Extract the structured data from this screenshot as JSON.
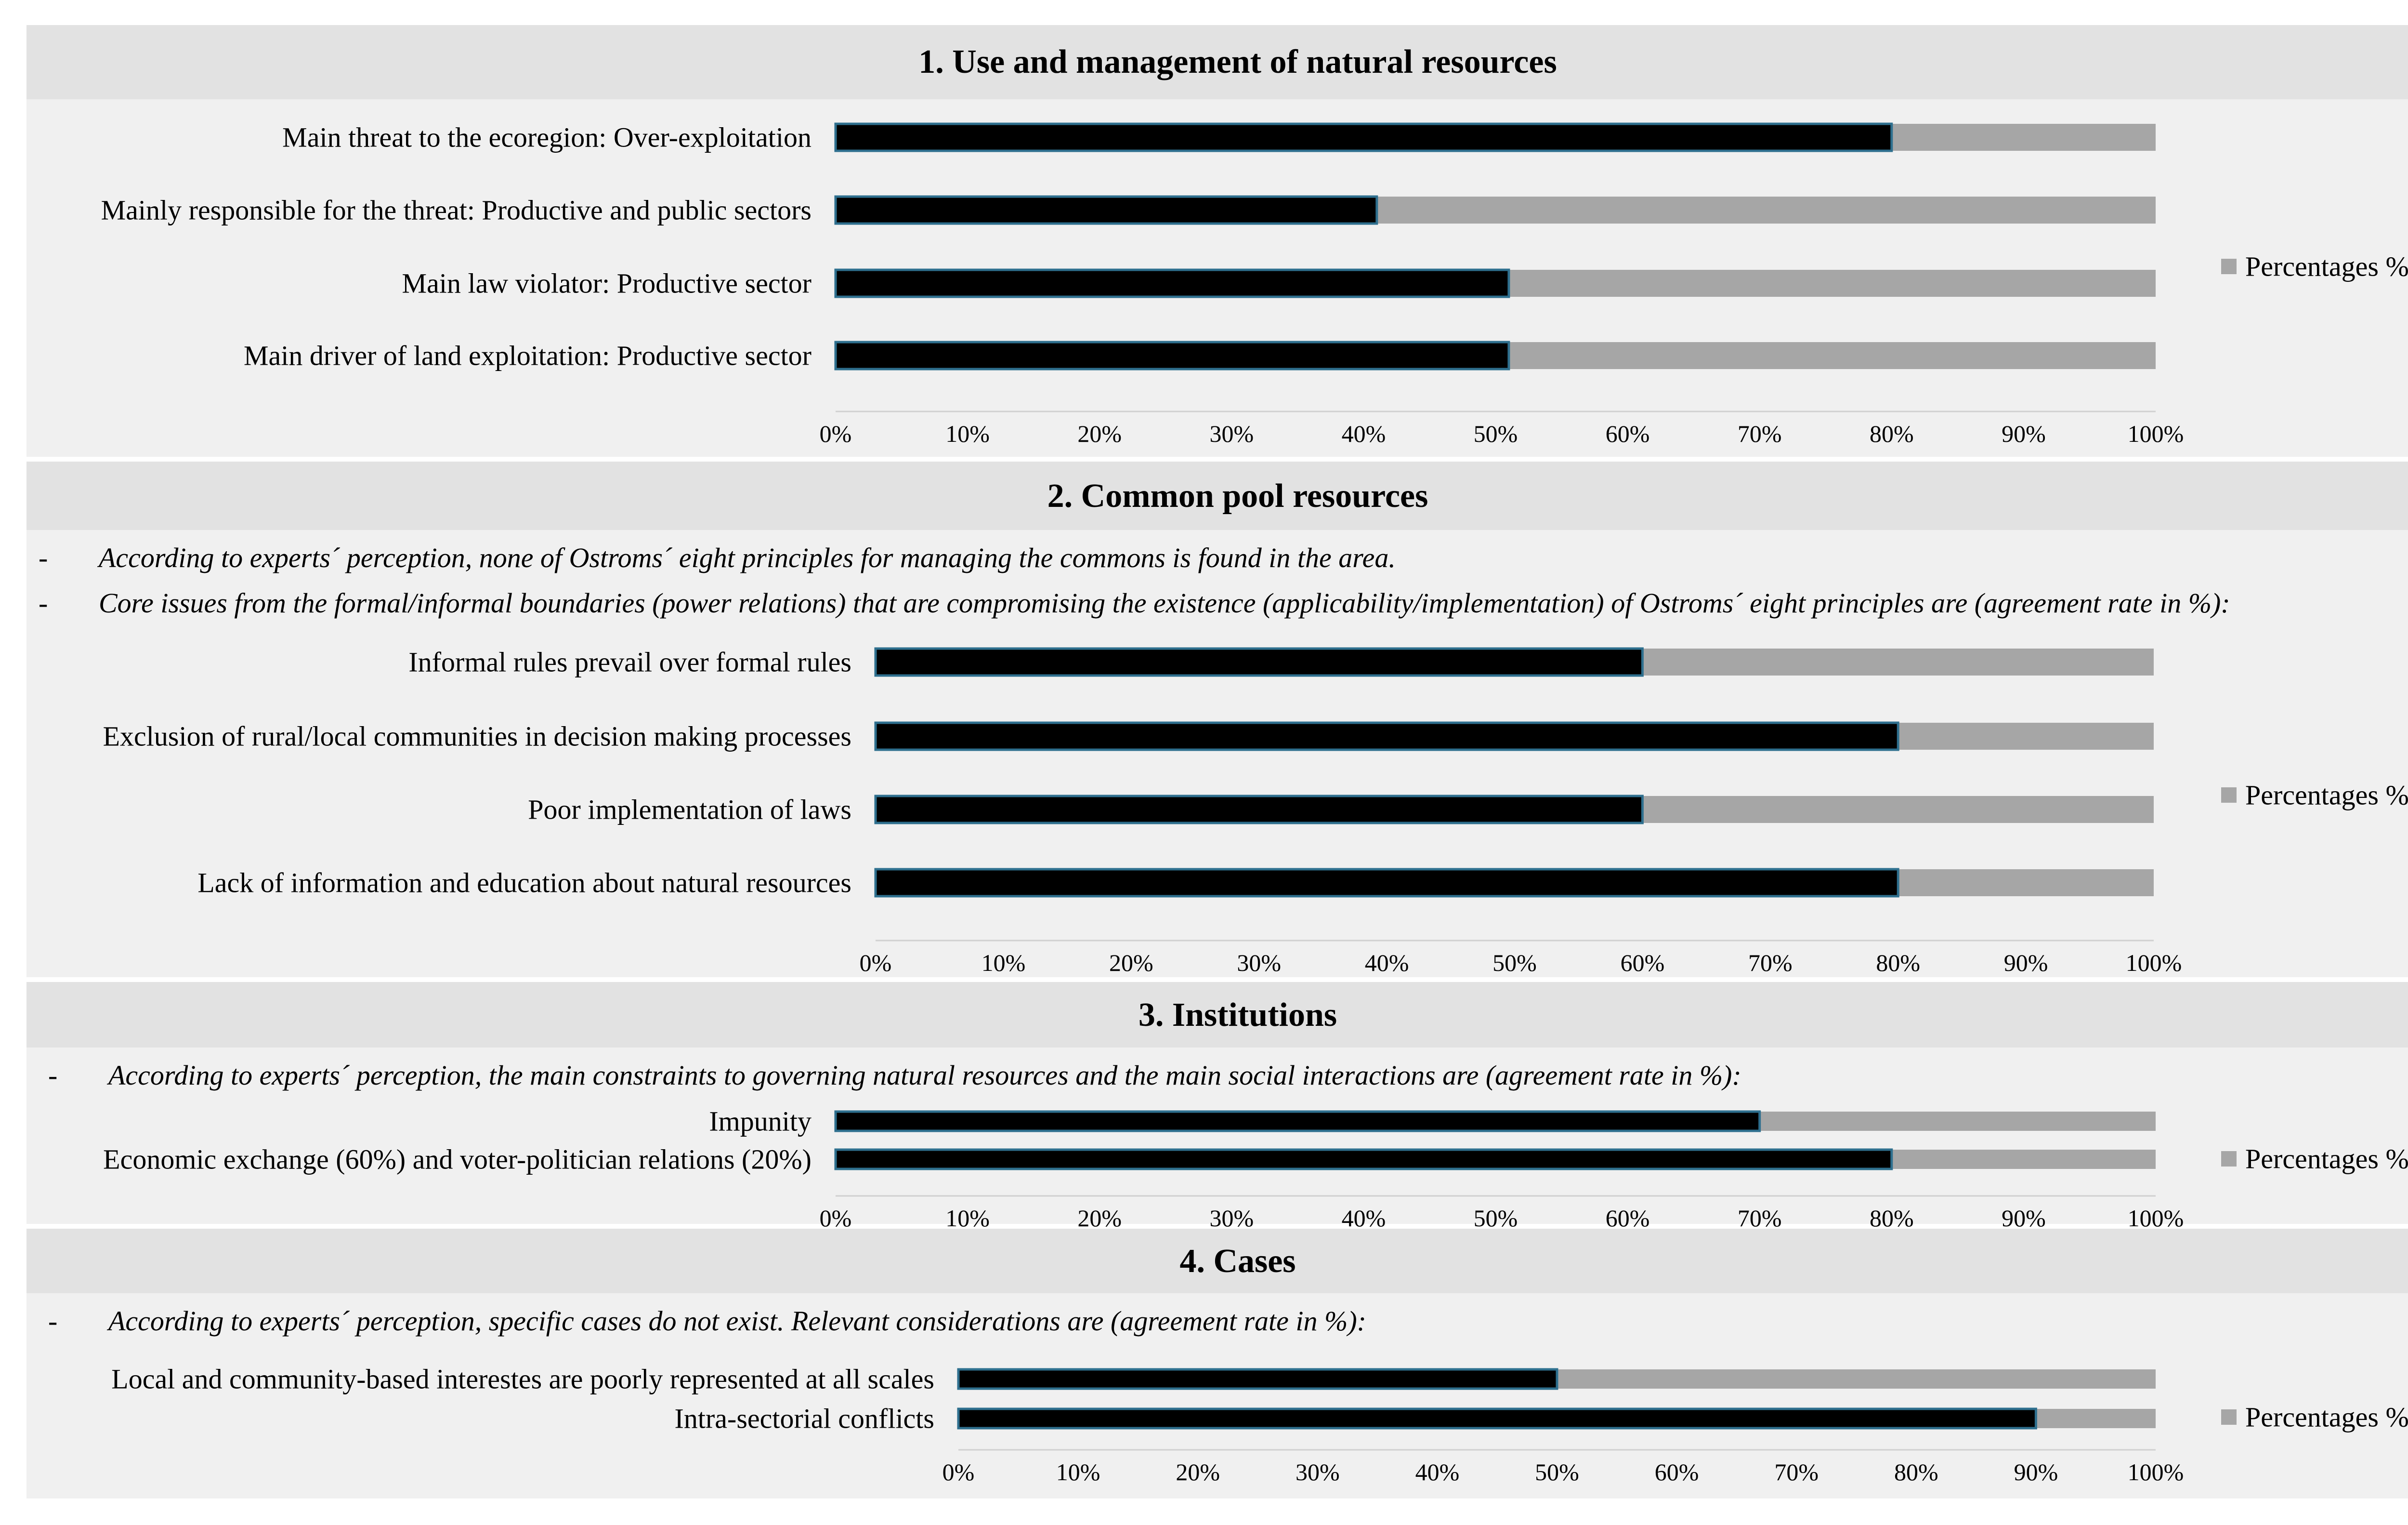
{
  "sections": [
    {
      "title": "1. Use and management of natural resources",
      "notes": [],
      "legend_label": "Percentages %"
    },
    {
      "title": "2. Common pool resources",
      "notes": [
        "According to experts´ perception, none of Ostroms´ eight principles for managing the commons is found in the area.",
        "Core issues from the formal/informal boundaries (power relations) that are compromising the existence (applicability/implementation) of Ostroms´ eight principles are (agreement rate in %):"
      ],
      "legend_label": "Percentages %"
    },
    {
      "title": "3. Institutions",
      "notes": [
        "According to experts´ perception, the main constraints to governing natural resources and the main social interactions are (agreement rate in %):"
      ],
      "legend_label": "Percentages %"
    },
    {
      "title": "4. Cases",
      "notes": [
        "According to experts´ perception, specific cases do not exist. Relevant considerations are (agreement rate in %):"
      ],
      "legend_label": "Percentages %"
    }
  ],
  "note_dash": "-",
  "colors": {
    "bar_fill": "#000000",
    "bar_outline": "#2e6f8e",
    "bar_remainder": "#a6a6a6",
    "title_band": "#e2e2e2",
    "body_band": "#f0f0f0"
  },
  "chart_data": [
    {
      "type": "bar",
      "orientation": "horizontal",
      "stacked_to_100": true,
      "categories": [
        "Main threat to the ecoregion: Over-exploitation",
        "Mainly responsible for the threat: Productive and public sectors",
        "Main law violator: Productive sector",
        "Main driver of land exploitation: Productive sector"
      ],
      "values": [
        80,
        41,
        51,
        51
      ],
      "xlim": [
        0,
        100
      ],
      "tick_labels": [
        "0%",
        "10%",
        "20%",
        "30%",
        "40%",
        "50%",
        "60%",
        "70%",
        "80%",
        "90%",
        "100%"
      ],
      "legend": {
        "entry": "Percentages %",
        "position": "right"
      }
    },
    {
      "type": "bar",
      "orientation": "horizontal",
      "stacked_to_100": true,
      "categories": [
        "Informal rules prevail over formal rules",
        "Exclusion of rural/local communities in decision making processes",
        "Poor implementation of laws",
        "Lack of information and education about natural resources"
      ],
      "values": [
        60,
        80,
        60,
        80
      ],
      "xlim": [
        0,
        100
      ],
      "tick_labels": [
        "0%",
        "10%",
        "20%",
        "30%",
        "40%",
        "50%",
        "60%",
        "70%",
        "80%",
        "90%",
        "100%"
      ],
      "legend": {
        "entry": "Percentages %",
        "position": "right"
      }
    },
    {
      "type": "bar",
      "orientation": "horizontal",
      "stacked_to_100": true,
      "categories": [
        "Impunity",
        "Economic exchange (60%) and voter-politician relations (20%)"
      ],
      "values": [
        70,
        80
      ],
      "xlim": [
        0,
        100
      ],
      "tick_labels": [
        "0%",
        "10%",
        "20%",
        "30%",
        "40%",
        "50%",
        "60%",
        "70%",
        "80%",
        "90%",
        "100%"
      ],
      "legend": {
        "entry": "Percentages %",
        "position": "right"
      }
    },
    {
      "type": "bar",
      "orientation": "horizontal",
      "stacked_to_100": true,
      "categories": [
        "Local and community-based interestes are poorly represented at all scales",
        "Intra-sectorial conflicts"
      ],
      "values": [
        50,
        90
      ],
      "xlim": [
        0,
        100
      ],
      "tick_labels": [
        "0%",
        "10%",
        "20%",
        "30%",
        "40%",
        "50%",
        "60%",
        "70%",
        "80%",
        "90%",
        "100%"
      ],
      "legend": {
        "entry": "Percentages %",
        "position": "right"
      }
    }
  ]
}
